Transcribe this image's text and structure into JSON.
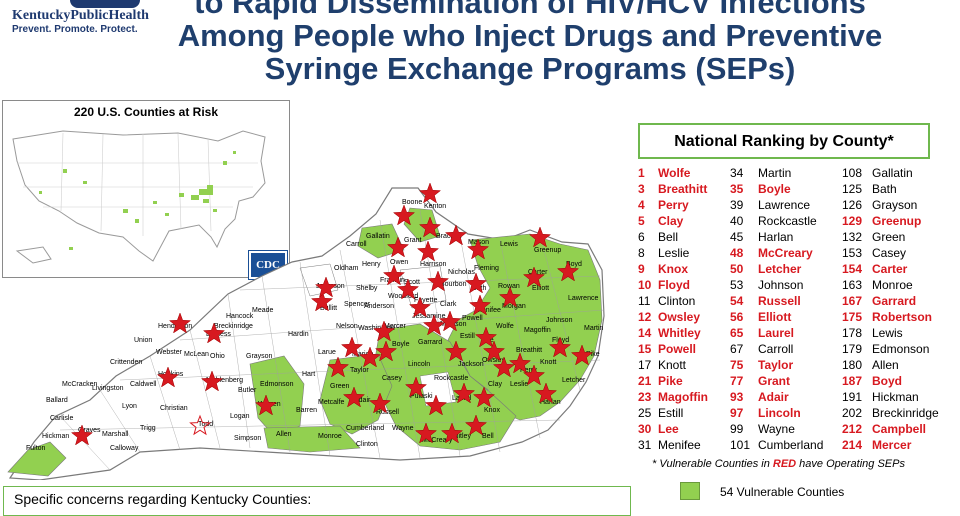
{
  "logo": {
    "title": "KentuckyPublicHealth",
    "tagline": "Prevent. Promote. Protect."
  },
  "title": {
    "line1": "to Rapid Dissemination of HIV/HCV Infections",
    "line2": "Among People who Inject Drugs and Preventive",
    "line3": "Syringe Exchange Programs (SEPs)"
  },
  "us_map": {
    "title": "220 U.S. Counties at Risk",
    "badge": "CDC"
  },
  "ky_map": {
    "labels": [
      "Boone",
      "Kenton",
      "Gallatin",
      "Carroll",
      "Grant",
      "Bracken",
      "Mason",
      "Lewis",
      "Greenup",
      "Boyd",
      "Oldham",
      "Henry",
      "Owen",
      "Harrison",
      "Nicholas",
      "Fleming",
      "Carter",
      "Lawrence",
      "Jefferson",
      "Shelby",
      "Franklin",
      "Scott",
      "Bourbon",
      "Bath",
      "Rowan",
      "Elliott",
      "Spencer",
      "Woodford",
      "Fayette",
      "Clark",
      "Menifee",
      "Morgan",
      "Johnson",
      "Martin",
      "Meade",
      "Bullitt",
      "Anderson",
      "Jessamine",
      "Madison",
      "Estill",
      "Powell",
      "Wolfe",
      "Magoffin",
      "Floyd",
      "Pike",
      "Hancock",
      "Breckinridge",
      "Hardin",
      "Nelson",
      "Washington",
      "Mercer",
      "Boyle",
      "Garrard",
      "Lee",
      "Breathitt",
      "Knott",
      "Letcher",
      "Henderson",
      "Daviess",
      "Union",
      "Webster",
      "McLean",
      "Ohio",
      "Grayson",
      "Larue",
      "Marion",
      "Taylor",
      "Lincoln",
      "Rockcastle",
      "Jackson",
      "Owsley",
      "Clay",
      "Perry",
      "Leslie",
      "Harlan",
      "Hopkins",
      "Muhlenberg",
      "Butler",
      "Edmonson",
      "Hart",
      "Green",
      "Adair",
      "Casey",
      "Pulaski",
      "Laurel",
      "Knox",
      "Bell",
      "Crittenden",
      "Caldwell",
      "Christian",
      "Todd",
      "Logan",
      "Warren",
      "Barren",
      "Metcalfe",
      "Cumberland",
      "Clinton",
      "Wayne",
      "McCreary",
      "Whitley",
      "Ballard",
      "McCracken",
      "Livingston",
      "Lyon",
      "Trigg",
      "Carlisle",
      "Graves",
      "Marshall",
      "Calloway",
      "Hickman",
      "Fulton",
      "Allen",
      "Simpson",
      "Monroe",
      "Russell"
    ]
  },
  "ranking": {
    "title": "National Ranking by County*",
    "columns": [
      [
        {
          "rank": "1",
          "county": "Wolfe",
          "sep": true
        },
        {
          "rank": "3",
          "county": "Breathitt",
          "sep": true
        },
        {
          "rank": "4",
          "county": "Perry",
          "sep": true
        },
        {
          "rank": "5",
          "county": "Clay",
          "sep": true
        },
        {
          "rank": "6",
          "county": "Bell",
          "sep": false
        },
        {
          "rank": "8",
          "county": "Leslie",
          "sep": false
        },
        {
          "rank": "9",
          "county": "Knox",
          "sep": true
        },
        {
          "rank": "10",
          "county": "Floyd",
          "sep": true
        },
        {
          "rank": "11",
          "county": "Clinton",
          "sep": false
        },
        {
          "rank": "12",
          "county": "Owsley",
          "sep": true
        },
        {
          "rank": "14",
          "county": "Whitley",
          "sep": true
        },
        {
          "rank": "15",
          "county": "Powell",
          "sep": true
        },
        {
          "rank": "17",
          "county": "Knott",
          "sep": false
        },
        {
          "rank": "21",
          "county": "Pike",
          "sep": true
        },
        {
          "rank": "23",
          "county": "Magoffin",
          "sep": true
        },
        {
          "rank": "25",
          "county": "Estill",
          "sep": false
        },
        {
          "rank": "30",
          "county": "Lee",
          "sep": true
        },
        {
          "rank": "31",
          "county": "Menifee",
          "sep": false
        }
      ],
      [
        {
          "rank": "34",
          "county": "Martin",
          "sep": false
        },
        {
          "rank": "35",
          "county": "Boyle",
          "sep": true
        },
        {
          "rank": "39",
          "county": "Lawrence",
          "sep": false
        },
        {
          "rank": "40",
          "county": "Rockcastle",
          "sep": false
        },
        {
          "rank": "45",
          "county": "Harlan",
          "sep": false
        },
        {
          "rank": "48",
          "county": "McCreary",
          "sep": true
        },
        {
          "rank": "50",
          "county": "Letcher",
          "sep": true
        },
        {
          "rank": "53",
          "county": "Johnson",
          "sep": false
        },
        {
          "rank": "54",
          "county": "Russell",
          "sep": true
        },
        {
          "rank": "56",
          "county": "Elliott",
          "sep": true
        },
        {
          "rank": "65",
          "county": "Laurel",
          "sep": true
        },
        {
          "rank": "67",
          "county": "Carroll",
          "sep": false
        },
        {
          "rank": "75",
          "county": "Taylor",
          "sep": true
        },
        {
          "rank": "77",
          "county": "Grant",
          "sep": true
        },
        {
          "rank": "93",
          "county": "Adair",
          "sep": true
        },
        {
          "rank": "97",
          "county": "Lincoln",
          "sep": true
        },
        {
          "rank": "99",
          "county": "Wayne",
          "sep": false
        },
        {
          "rank": "101",
          "county": "Cumberland",
          "sep": false
        }
      ],
      [
        {
          "rank": "108",
          "county": "Gallatin",
          "sep": false
        },
        {
          "rank": "125",
          "county": "Bath",
          "sep": false
        },
        {
          "rank": "126",
          "county": "Grayson",
          "sep": false
        },
        {
          "rank": "129",
          "county": "Greenup",
          "sep": true
        },
        {
          "rank": "132",
          "county": "Green",
          "sep": false
        },
        {
          "rank": "153",
          "county": "Casey",
          "sep": false
        },
        {
          "rank": "154",
          "county": "Carter",
          "sep": true
        },
        {
          "rank": "163",
          "county": "Monroe",
          "sep": false
        },
        {
          "rank": "167",
          "county": "Garrard",
          "sep": true
        },
        {
          "rank": "175",
          "county": "Robertson",
          "sep": true
        },
        {
          "rank": "178",
          "county": "Lewis",
          "sep": false
        },
        {
          "rank": "179",
          "county": "Edmonson",
          "sep": false
        },
        {
          "rank": "180",
          "county": "Allen",
          "sep": false
        },
        {
          "rank": "187",
          "county": "Boyd",
          "sep": true
        },
        {
          "rank": "191",
          "county": "Hickman",
          "sep": false
        },
        {
          "rank": "202",
          "county": "Breckinridge",
          "sep": false
        },
        {
          "rank": "212",
          "county": "Campbell",
          "sep": true
        },
        {
          "rank": "214",
          "county": "Mercer",
          "sep": true
        }
      ]
    ],
    "note_prefix": "* Vulnerable Counties in ",
    "note_red": "RED",
    "note_suffix": " have Operating SEPs"
  },
  "legend": {
    "label": "54 Vulnerable Counties",
    "color": "#92d050"
  },
  "concerns": {
    "text": "Specific concerns regarding Kentucky Counties:"
  },
  "colors": {
    "title": "#1f3f6d",
    "sep_red": "#d71920",
    "vulnerable_green": "#92d050",
    "logo_blue": "#1f3a70"
  }
}
